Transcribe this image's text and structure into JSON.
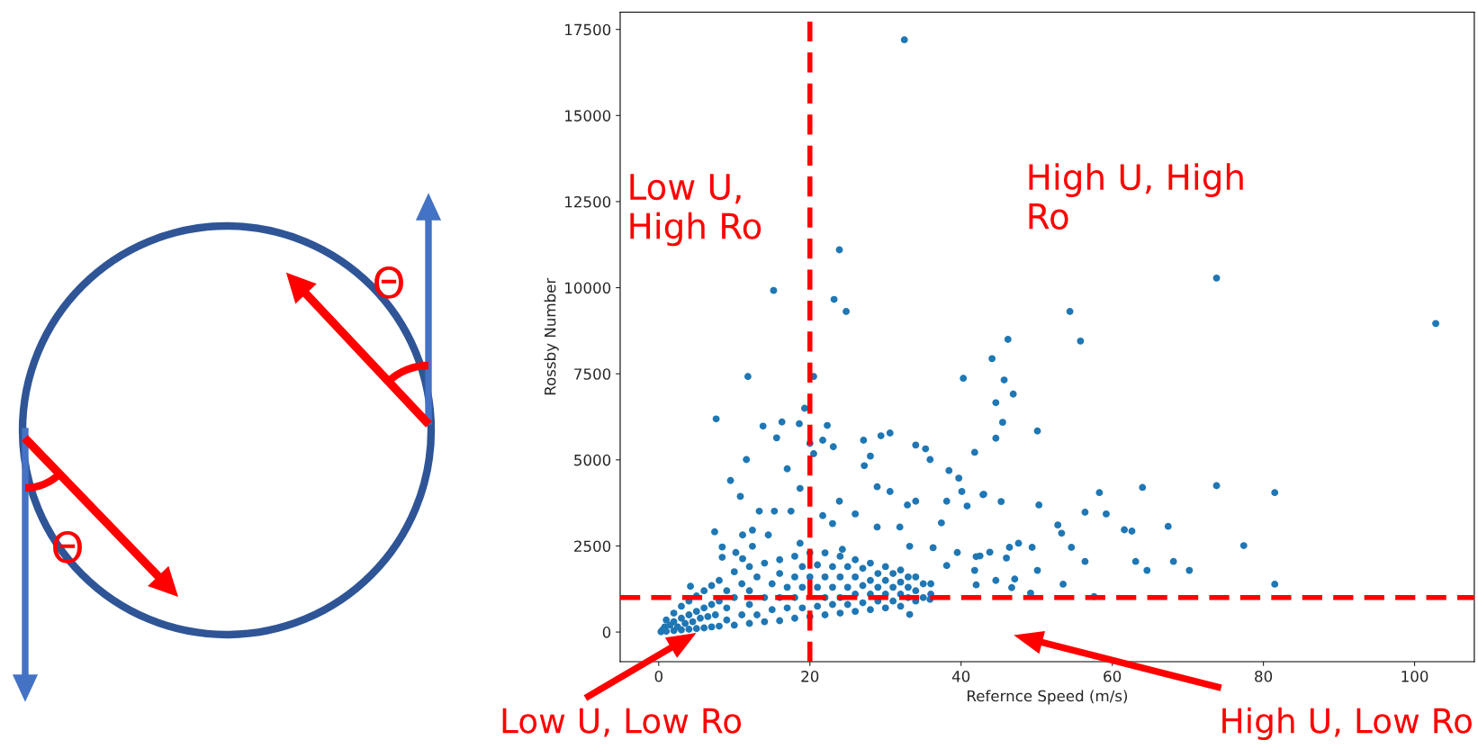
{
  "chart_data": {
    "type": "scatter",
    "xlabel": "Refernce Speed (m/s)",
    "ylabel": "Rossby Number",
    "xlim": [
      -5.1,
      107.9
    ],
    "ylim": [
      -860,
      18000
    ],
    "xticks": [
      0,
      20,
      40,
      60,
      80,
      100
    ],
    "yticks": [
      0,
      2500,
      5000,
      7500,
      10000,
      12500,
      15000,
      17500
    ],
    "grid": false,
    "legend": false,
    "marker": "circle",
    "ref_lines": [
      {
        "axis": "x",
        "value": 20,
        "color": "#ff0000",
        "line_style": "dashed"
      },
      {
        "axis": "y",
        "value": 1000,
        "color": "#ff0000",
        "line_style": "dashed"
      }
    ],
    "annotations": [
      "Low U,\nHigh Ro",
      "High U, High\nRo",
      "Θ",
      "Θ",
      "Low U, Low Ro",
      "High U, Low Ro"
    ],
    "series": [
      {
        "color": "#1f77b4",
        "x": [
          0.3,
          0.5,
          0.8,
          1,
          1,
          1.5,
          2,
          2,
          2,
          2.5,
          3,
          3,
          3,
          3.5,
          4,
          4,
          4,
          4.5,
          5,
          5,
          5,
          5.5,
          6,
          6,
          6,
          6.5,
          7,
          7,
          7,
          7.5,
          8,
          8,
          8,
          9,
          9,
          9,
          10,
          10,
          10,
          11,
          11,
          12,
          12,
          12,
          12,
          13,
          13,
          14,
          14,
          14,
          15,
          15,
          16,
          16,
          16,
          16,
          17,
          17,
          18,
          18,
          18,
          18,
          19,
          19,
          19,
          20,
          20,
          20,
          21,
          21,
          21,
          22,
          22,
          22,
          22,
          23,
          23,
          23,
          24,
          24,
          24,
          24,
          25,
          25,
          25,
          26,
          26,
          26,
          26,
          27,
          27,
          27,
          28,
          28,
          28,
          28,
          29,
          29,
          29,
          30,
          30,
          30,
          30,
          31,
          31,
          31,
          32,
          32,
          32,
          32,
          33,
          33,
          33,
          34,
          34,
          34,
          35,
          35,
          36,
          36,
          32.5,
          23.9,
          15.2,
          23.2,
          24.8,
          11.8,
          20.5,
          40.3,
          7.6,
          19.3,
          13.8,
          16.3,
          18.6,
          22.3,
          15.6,
          21.7,
          23.1,
          20.5,
          11.6,
          9.5,
          10.8,
          7.4,
          8.4,
          8.4,
          4.2,
          30.6,
          29.4,
          27.1,
          34,
          35.3,
          35.9,
          38.4,
          41.8,
          39.7,
          40.1,
          40.8,
          42.9,
          32.9,
          34,
          38.1,
          37.4,
          36.3,
          39.5,
          38.1,
          35.9,
          33.2,
          42,
          41.8,
          42,
          30.6,
          28.9,
          23.9,
          26,
          21.7,
          17.5,
          27.2,
          28,
          17,
          18.7,
          20,
          15.3,
          13.3,
          12.4,
          11.1,
          14.5,
          12.4,
          10.2,
          11.1,
          18.7,
          24.3,
          28.9,
          31.9,
          33.2,
          23,
          73.8,
          102.8,
          54.4,
          55.8,
          46.2,
          44.1,
          45.7,
          46.9,
          44.6,
          45.5,
          44.6,
          50.1,
          43,
          45.3,
          50.3,
          58.3,
          64,
          73.8,
          81.5,
          56.4,
          59.2,
          52.8,
          53.3,
          61.6,
          62.6,
          67.4,
          77.4,
          47.6,
          46.4,
          49.4,
          54.6,
          46,
          43.8,
          42.5,
          56.4,
          63.1,
          68.1,
          50.1,
          64.6,
          70.2,
          44.6,
          47.1,
          46.7,
          49.2,
          53.5,
          81.5,
          57.6
        ],
        "values": [
          10,
          60,
          150,
          20,
          350,
          200,
          40,
          300,
          550,
          150,
          60,
          400,
          750,
          250,
          80,
          500,
          900,
          300,
          100,
          600,
          1050,
          400,
          120,
          700,
          1200,
          450,
          150,
          800,
          1350,
          500,
          170,
          900,
          1500,
          350,
          700,
          1200,
          200,
          1000,
          1750,
          500,
          1400,
          250,
          800,
          1200,
          1900,
          500,
          1600,
          300,
          1000,
          2000,
          650,
          1400,
          330,
          1000,
          1700,
          2100,
          700,
          1300,
          400,
          1000,
          1600,
          2200,
          700,
          1300,
          1900,
          450,
          1600,
          2300,
          750,
          1300,
          1950,
          500,
          1000,
          1600,
          2300,
          800,
          1300,
          1900,
          550,
          1000,
          1600,
          2200,
          800,
          1300,
          1900,
          600,
          1100,
          1600,
          2100,
          850,
          1350,
          1850,
          650,
          1100,
          1500,
          2000,
          900,
          1300,
          1700,
          700,
          1100,
          1500,
          1900,
          900,
          1300,
          1700,
          750,
          1100,
          1450,
          1800,
          1000,
          1300,
          1600,
          900,
          1200,
          1600,
          1000,
          1400,
          1100,
          1400,
          17200,
          11100,
          9920,
          9660,
          9310,
          7420,
          7420,
          7370,
          6190,
          6500,
          5980,
          6100,
          6050,
          6000,
          5640,
          5570,
          5380,
          5180,
          5010,
          4400,
          3940,
          2910,
          2470,
          2170,
          1330,
          5780,
          5700,
          5570,
          5430,
          5320,
          5010,
          4690,
          5220,
          4470,
          4080,
          3660,
          3990,
          3690,
          3800,
          3800,
          3170,
          2450,
          2310,
          1930,
          950,
          510,
          1370,
          1790,
          2190,
          4080,
          4220,
          3800,
          3430,
          3380,
          3510,
          4830,
          5110,
          4740,
          4170,
          5480,
          3510,
          3510,
          2960,
          2820,
          2820,
          2490,
          2310,
          2130,
          2580,
          2400,
          3050,
          3050,
          2490,
          3150,
          10280,
          8960,
          9310,
          8450,
          8500,
          7940,
          7320,
          6910,
          6660,
          6090,
          5630,
          5840,
          4000,
          3790,
          3690,
          4050,
          4200,
          4250,
          4050,
          3480,
          3430,
          3110,
          2870,
          2970,
          2930,
          3070,
          2510,
          2580,
          2460,
          2460,
          2460,
          2150,
          2320,
          2210,
          2050,
          2050,
          2050,
          1790,
          1790,
          1790,
          1500,
          1540,
          1290,
          1130,
          1390,
          1390,
          1030
        ]
      }
    ]
  }
}
